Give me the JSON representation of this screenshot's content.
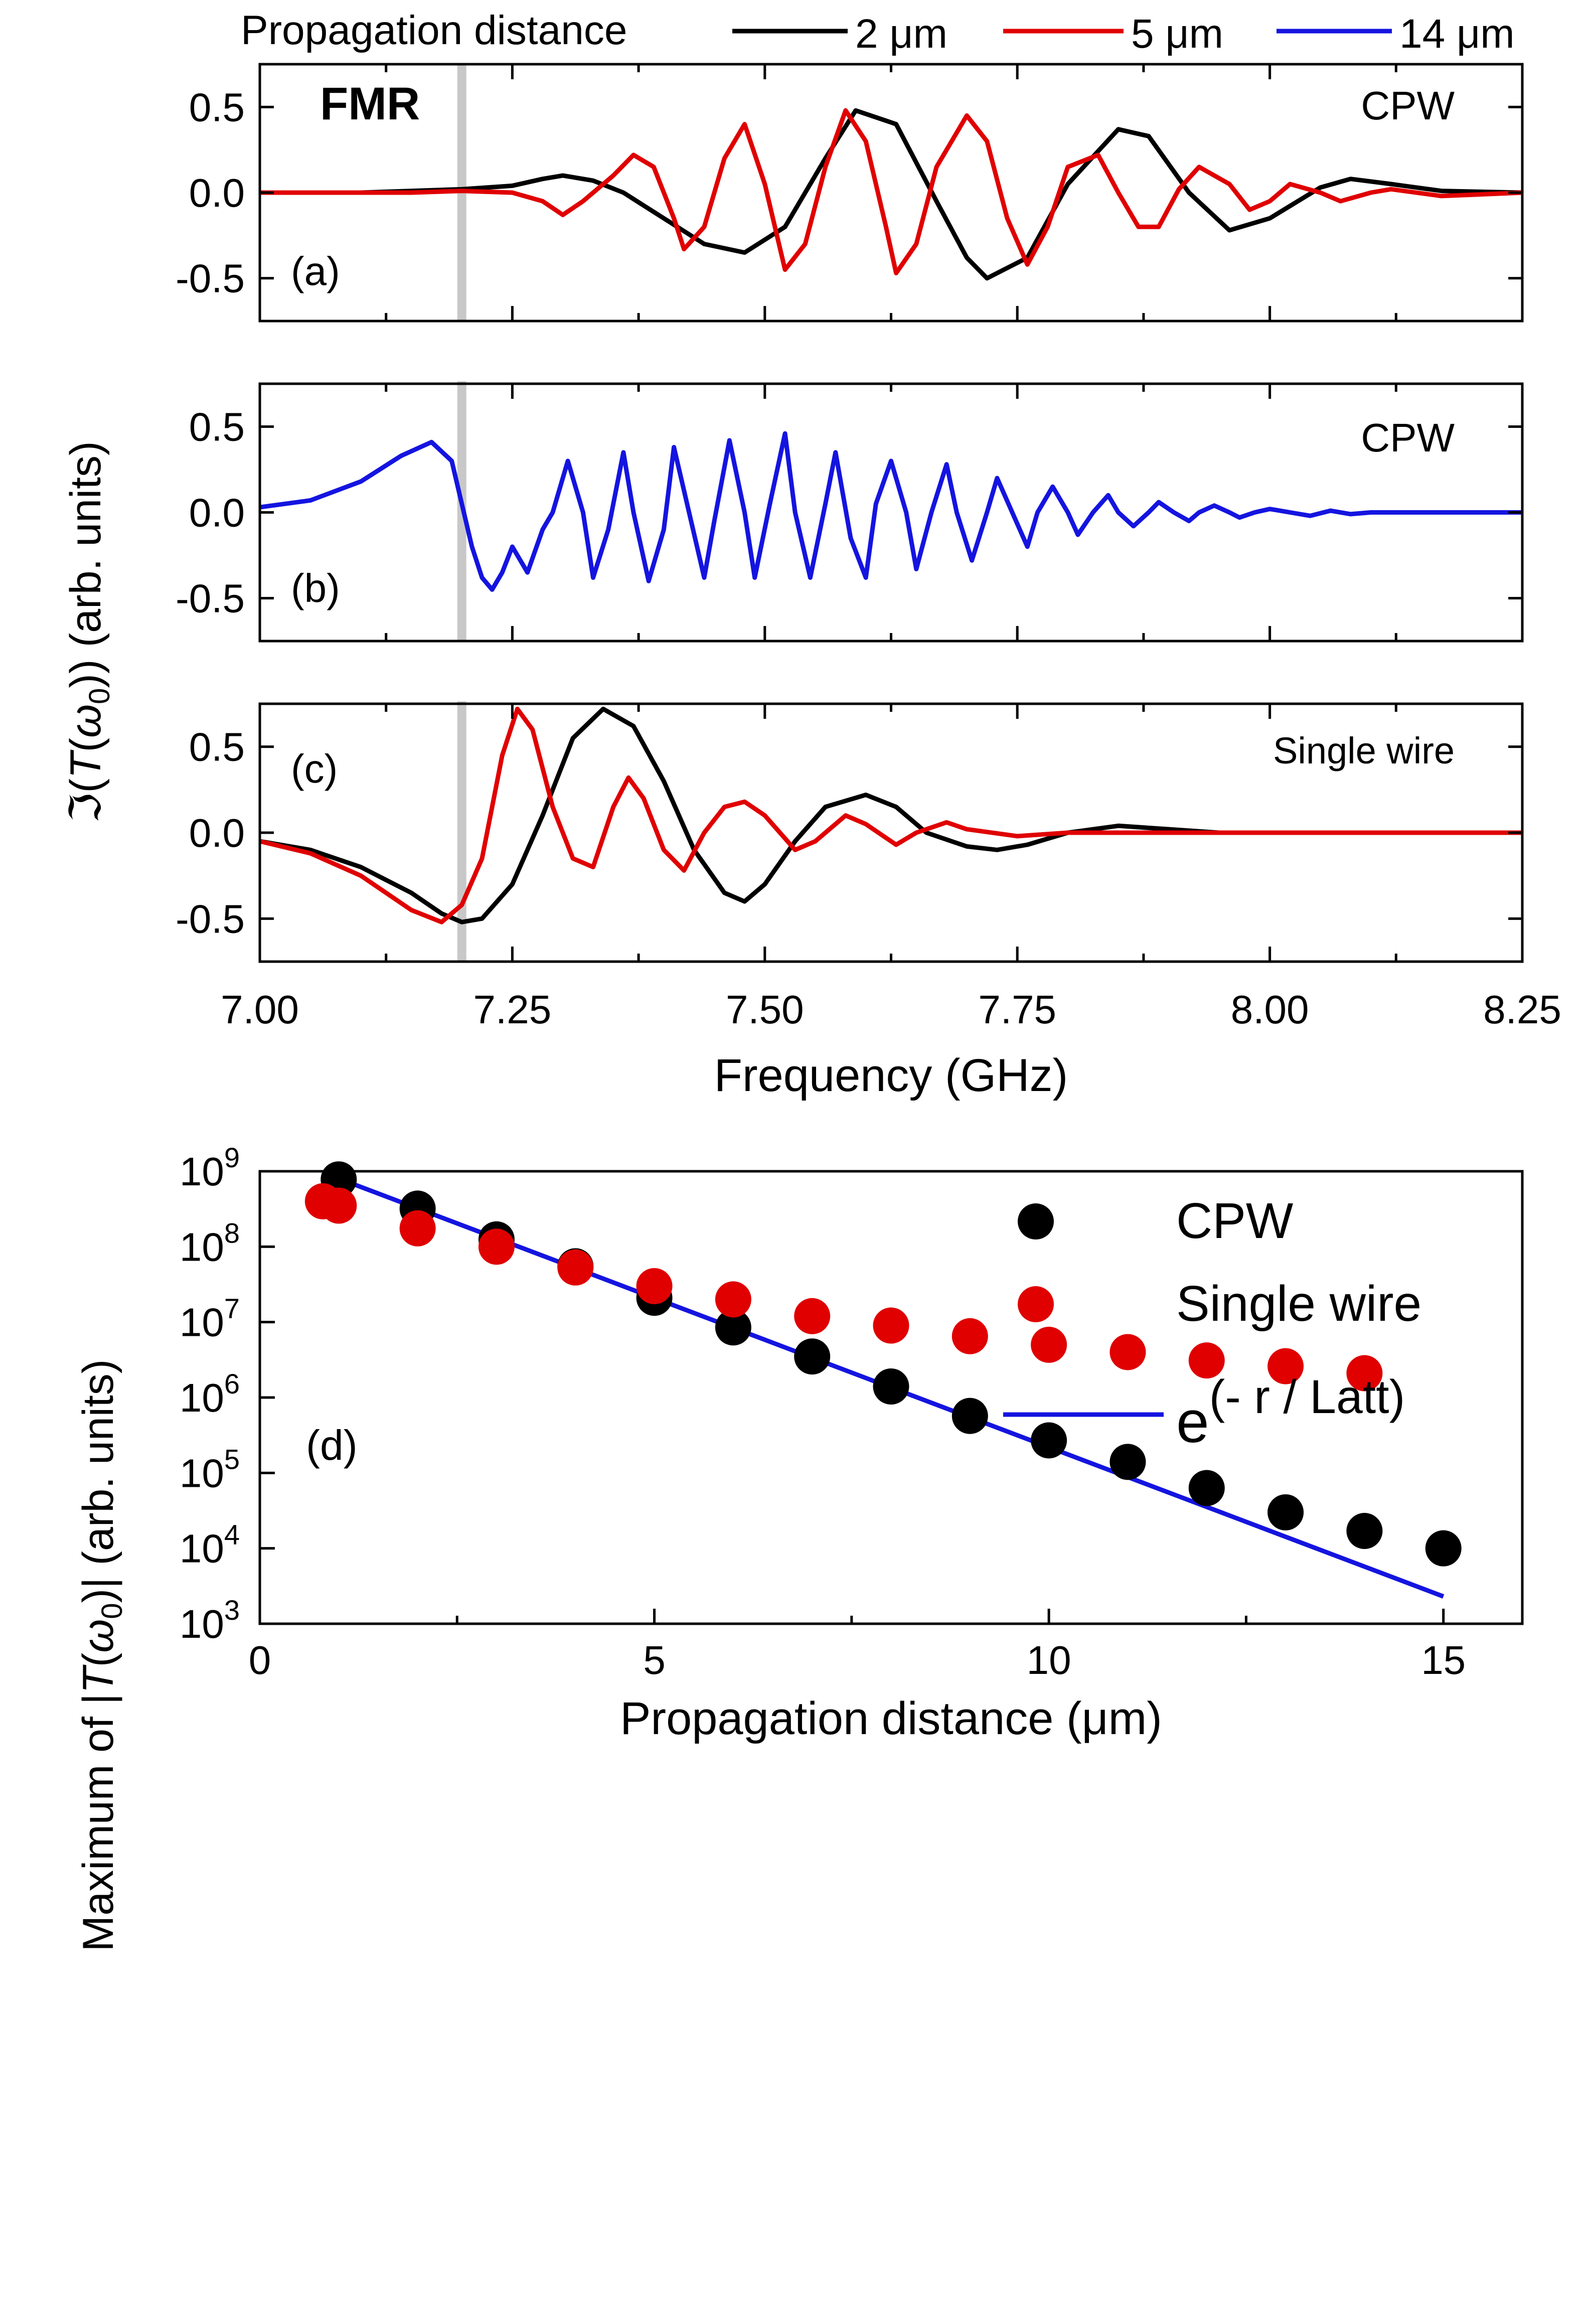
{
  "chart_data": [
    {
      "id": "a",
      "type": "line",
      "panel_label": "(a)",
      "annotation": "CPW",
      "marker_label": "FMR",
      "marker_x": 7.2,
      "xlim": [
        7.0,
        8.25
      ],
      "ylim": [
        -0.75,
        0.75
      ],
      "yticks": [
        -0.5,
        0.0,
        0.5
      ],
      "ytick_labels": [
        "-0.5",
        "0.0",
        "0.5"
      ],
      "series": [
        {
          "name": "2 μm",
          "color": "#000000",
          "x": [
            7.0,
            7.1,
            7.15,
            7.2,
            7.25,
            7.28,
            7.3,
            7.33,
            7.36,
            7.4,
            7.44,
            7.48,
            7.52,
            7.56,
            7.59,
            7.63,
            7.67,
            7.7,
            7.72,
            7.76,
            7.8,
            7.85,
            7.88,
            7.92,
            7.96,
            8.0,
            8.05,
            8.08,
            8.12,
            8.17,
            8.25
          ],
          "y": [
            0.0,
            0.0,
            0.01,
            0.02,
            0.04,
            0.08,
            0.1,
            0.07,
            0.0,
            -0.15,
            -0.3,
            -0.35,
            -0.2,
            0.2,
            0.48,
            0.4,
            -0.05,
            -0.38,
            -0.5,
            -0.38,
            0.05,
            0.37,
            0.33,
            0.0,
            -0.22,
            -0.15,
            0.03,
            0.08,
            0.05,
            0.01,
            0.0
          ]
        },
        {
          "name": "5 μm",
          "color": "#e00000",
          "x": [
            7.0,
            7.15,
            7.2,
            7.25,
            7.28,
            7.3,
            7.32,
            7.35,
            7.37,
            7.39,
            7.41,
            7.42,
            7.44,
            7.46,
            7.48,
            7.5,
            7.52,
            7.54,
            7.56,
            7.58,
            7.6,
            7.62,
            7.63,
            7.65,
            7.67,
            7.7,
            7.72,
            7.74,
            7.76,
            7.78,
            7.8,
            7.83,
            7.85,
            7.87,
            7.89,
            7.91,
            7.93,
            7.96,
            7.98,
            8.0,
            8.02,
            8.05,
            8.07,
            8.1,
            8.12,
            8.17,
            8.25
          ],
          "y": [
            0.0,
            0.0,
            0.01,
            0.0,
            -0.05,
            -0.13,
            -0.05,
            0.1,
            0.22,
            0.15,
            -0.15,
            -0.33,
            -0.2,
            0.2,
            0.4,
            0.05,
            -0.45,
            -0.3,
            0.15,
            0.48,
            0.3,
            -0.2,
            -0.47,
            -0.3,
            0.15,
            0.45,
            0.3,
            -0.15,
            -0.42,
            -0.2,
            0.15,
            0.22,
            0.0,
            -0.2,
            -0.2,
            0.02,
            0.15,
            0.05,
            -0.1,
            -0.05,
            0.05,
            0.0,
            -0.05,
            0.0,
            0.02,
            -0.02,
            0.0
          ]
        }
      ]
    },
    {
      "id": "b",
      "type": "line",
      "panel_label": "(b)",
      "annotation": "CPW",
      "marker_x": 7.2,
      "xlim": [
        7.0,
        8.25
      ],
      "ylim": [
        -0.75,
        0.75
      ],
      "yticks": [
        -0.5,
        0.0,
        0.5
      ],
      "ytick_labels": [
        "-0.5",
        "0.0",
        "0.5"
      ],
      "series": [
        {
          "name": "14 μm",
          "color": "#1414e0",
          "x": [
            7.0,
            7.05,
            7.1,
            7.14,
            7.17,
            7.19,
            7.2,
            7.21,
            7.22,
            7.23,
            7.24,
            7.25,
            7.265,
            7.28,
            7.29,
            7.305,
            7.32,
            7.33,
            7.345,
            7.36,
            7.37,
            7.385,
            7.4,
            7.41,
            7.425,
            7.44,
            7.45,
            7.465,
            7.48,
            7.49,
            7.505,
            7.52,
            7.53,
            7.545,
            7.56,
            7.57,
            7.585,
            7.6,
            7.61,
            7.625,
            7.64,
            7.65,
            7.665,
            7.68,
            7.69,
            7.705,
            7.72,
            7.73,
            7.745,
            7.76,
            7.77,
            7.785,
            7.8,
            7.81,
            7.825,
            7.84,
            7.85,
            7.865,
            7.88,
            7.89,
            7.905,
            7.92,
            7.93,
            7.945,
            7.96,
            7.97,
            7.985,
            8.0,
            8.02,
            8.04,
            8.06,
            8.08,
            8.1,
            8.15,
            8.25
          ],
          "y": [
            0.03,
            0.07,
            0.18,
            0.33,
            0.41,
            0.3,
            0.05,
            -0.2,
            -0.38,
            -0.45,
            -0.35,
            -0.2,
            -0.35,
            -0.1,
            0.0,
            0.3,
            0.0,
            -0.38,
            -0.1,
            0.35,
            0.0,
            -0.4,
            -0.1,
            0.38,
            0.0,
            -0.38,
            -0.05,
            0.42,
            0.0,
            -0.38,
            0.05,
            0.46,
            0.0,
            -0.38,
            0.05,
            0.35,
            -0.15,
            -0.38,
            0.05,
            0.3,
            0.0,
            -0.33,
            0.0,
            0.28,
            0.0,
            -0.28,
            0.0,
            0.2,
            0.0,
            -0.2,
            0.0,
            0.15,
            0.0,
            -0.13,
            0.0,
            0.1,
            0.0,
            -0.08,
            0.0,
            0.06,
            0.0,
            -0.05,
            0.0,
            0.04,
            0.0,
            -0.03,
            0.0,
            0.02,
            0.0,
            -0.02,
            0.01,
            -0.01,
            0.0,
            0.0,
            0.0
          ]
        }
      ]
    },
    {
      "id": "c",
      "type": "line",
      "panel_label": "(c)",
      "annotation": "Single wire",
      "marker_x": 7.2,
      "xlim": [
        7.0,
        8.25
      ],
      "ylim": [
        -0.75,
        0.75
      ],
      "yticks": [
        -0.5,
        0.0,
        0.5
      ],
      "ytick_labels": [
        "-0.5",
        "0.0",
        "0.5"
      ],
      "xticks": [
        7.0,
        7.25,
        7.5,
        7.75,
        8.0,
        8.25
      ],
      "xtick_labels": [
        "7.00",
        "7.25",
        "7.50",
        "7.75",
        "8.00",
        "8.25"
      ],
      "xlabel": "Frequency (GHz)",
      "series": [
        {
          "name": "2 μm",
          "color": "#000000",
          "x": [
            7.0,
            7.05,
            7.1,
            7.15,
            7.18,
            7.2,
            7.22,
            7.25,
            7.28,
            7.31,
            7.34,
            7.37,
            7.4,
            7.43,
            7.46,
            7.48,
            7.5,
            7.53,
            7.56,
            7.6,
            7.63,
            7.66,
            7.7,
            7.73,
            7.76,
            7.8,
            7.85,
            7.9,
            7.95,
            8.0,
            8.1,
            8.25
          ],
          "y": [
            -0.05,
            -0.1,
            -0.2,
            -0.35,
            -0.47,
            -0.52,
            -0.5,
            -0.3,
            0.1,
            0.55,
            0.72,
            0.62,
            0.3,
            -0.1,
            -0.35,
            -0.4,
            -0.3,
            -0.05,
            0.15,
            0.22,
            0.15,
            0.0,
            -0.08,
            -0.1,
            -0.07,
            0.0,
            0.04,
            0.02,
            0.0,
            0.0,
            0.0,
            0.0
          ]
        },
        {
          "name": "5 μm",
          "color": "#e00000",
          "x": [
            7.0,
            7.05,
            7.1,
            7.15,
            7.18,
            7.2,
            7.22,
            7.24,
            7.255,
            7.27,
            7.29,
            7.31,
            7.33,
            7.35,
            7.365,
            7.38,
            7.4,
            7.42,
            7.44,
            7.46,
            7.48,
            7.5,
            7.53,
            7.55,
            7.58,
            7.6,
            7.63,
            7.65,
            7.68,
            7.7,
            7.75,
            7.8,
            7.85,
            7.9,
            8.0,
            8.25
          ],
          "y": [
            -0.05,
            -0.12,
            -0.25,
            -0.45,
            -0.52,
            -0.42,
            -0.15,
            0.45,
            0.72,
            0.6,
            0.15,
            -0.15,
            -0.2,
            0.15,
            0.32,
            0.2,
            -0.1,
            -0.22,
            0.0,
            0.15,
            0.18,
            0.1,
            -0.1,
            -0.05,
            0.1,
            0.05,
            -0.07,
            0.0,
            0.06,
            0.02,
            -0.02,
            0.0,
            0.0,
            0.0,
            0.0,
            0.0
          ]
        }
      ]
    },
    {
      "id": "d",
      "type": "scatter",
      "panel_label": "(d)",
      "yscale": "log",
      "xlim": [
        0,
        16
      ],
      "ylim": [
        1000,
        1000000000
      ],
      "xticks": [
        0,
        5,
        10,
        15
      ],
      "xtick_labels": [
        "0",
        "5",
        "10",
        "15"
      ],
      "ytick_exponents": [
        "3",
        "4",
        "5",
        "6",
        "7",
        "8",
        "9"
      ],
      "ytick_base": "10",
      "xlabel": "Propagation distance (μm)",
      "ylabel_pre": "Maximum of |",
      "ylabel_T": "T",
      "ylabel_paren_open": "(",
      "ylabel_omega": "ω",
      "ylabel_sub": "0",
      "ylabel_post": ")| (arb. units)",
      "series": [
        {
          "name": "CPW",
          "color": "#000000",
          "marker": "circle",
          "x": [
            1,
            2,
            3,
            4,
            5,
            6,
            7,
            8,
            9,
            10,
            11,
            12,
            13,
            14,
            15
          ],
          "y": [
            780000000,
            320000000,
            125000000,
            55000000,
            21000000,
            8500000,
            3500000,
            1400000,
            570000,
            270000,
            140000,
            63000,
            30000,
            17000,
            10000
          ]
        },
        {
          "name": "Single wire",
          "color": "#e00000",
          "marker": "circle",
          "x": [
            0.8,
            1,
            2,
            3,
            4,
            5,
            6,
            7,
            8,
            9,
            10,
            11,
            12,
            13,
            14
          ],
          "y": [
            400000000,
            350000000,
            175000000,
            100000000,
            53000000,
            30000000,
            20000000,
            12000000,
            9000000,
            6500000,
            5000000,
            4000000,
            3100000,
            2600000,
            2100000
          ]
        },
        {
          "name": "e(- r / Latt)",
          "legend_base": "e",
          "legend_exponent": "(- r / Latt)",
          "color": "#1414e0",
          "type": "line",
          "x": [
            1,
            15
          ],
          "y": [
            800000000,
            2300
          ]
        }
      ]
    }
  ],
  "top_legend": {
    "title": "Propagation distance",
    "entries": [
      {
        "label": "2 μm",
        "color": "#000000"
      },
      {
        "label": "5 μm",
        "color": "#e00000"
      },
      {
        "label": "14 μm",
        "color": "#1414e0"
      }
    ]
  },
  "shared_ylabel_abc": {
    "script": "ℑ(",
    "T": "T",
    "paren_open": "(",
    "omega": "ω",
    "sub": "0",
    "post": ")) (arb. units)"
  },
  "colors": {
    "marker_line": "#c8c8c8",
    "marker_label": "#c0c0c0"
  }
}
